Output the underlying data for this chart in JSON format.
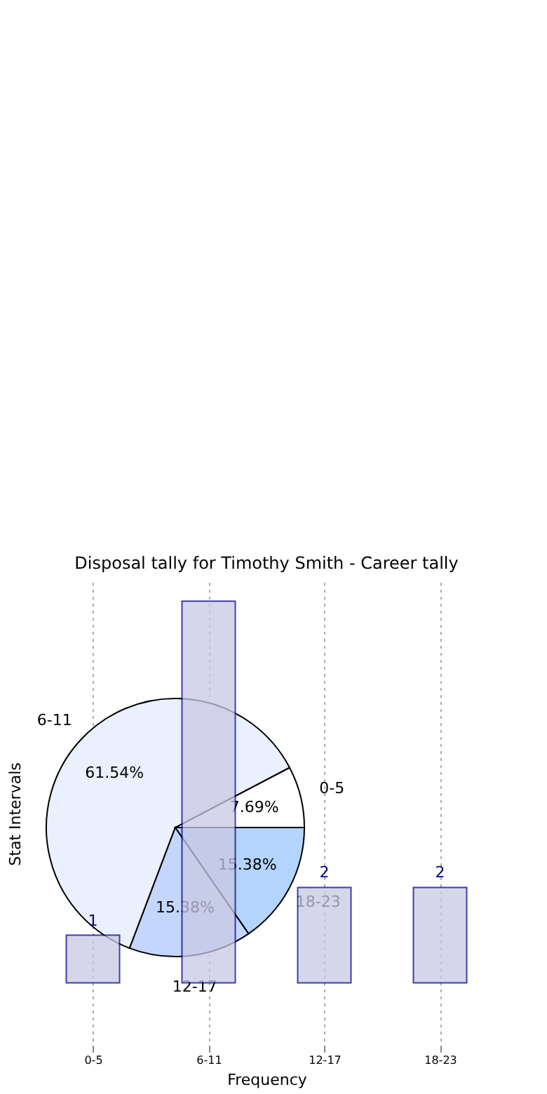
{
  "chart_data": [
    {
      "type": "bar",
      "title": "Disposal tally for Timothy Smith - Career tally",
      "xlabel": "Frequency",
      "ylabel": "Stat Intervals",
      "categories": [
        "0-5",
        "6-11",
        "12-17",
        "18-23"
      ],
      "values": [
        1,
        8,
        2,
        2
      ],
      "value_labels": [
        "1",
        null,
        "2",
        "2"
      ],
      "color": "#c9c9e3",
      "ylim": [
        -1.3,
        8.4
      ],
      "grid": "x",
      "tick_labels": "x"
    },
    {
      "type": "pie",
      "categories": [
        "0-5",
        "6-11",
        "12-17",
        "18-23"
      ],
      "values": [
        7.69,
        61.54,
        15.38,
        15.38
      ],
      "colors": [
        "#ffffff",
        "#eaf0fd",
        "#c4d6fd",
        "#b3d4fe"
      ],
      "value_labels": [
        "7.69%",
        "61.54%",
        "15.38%",
        "15.38%"
      ]
    }
  ]
}
